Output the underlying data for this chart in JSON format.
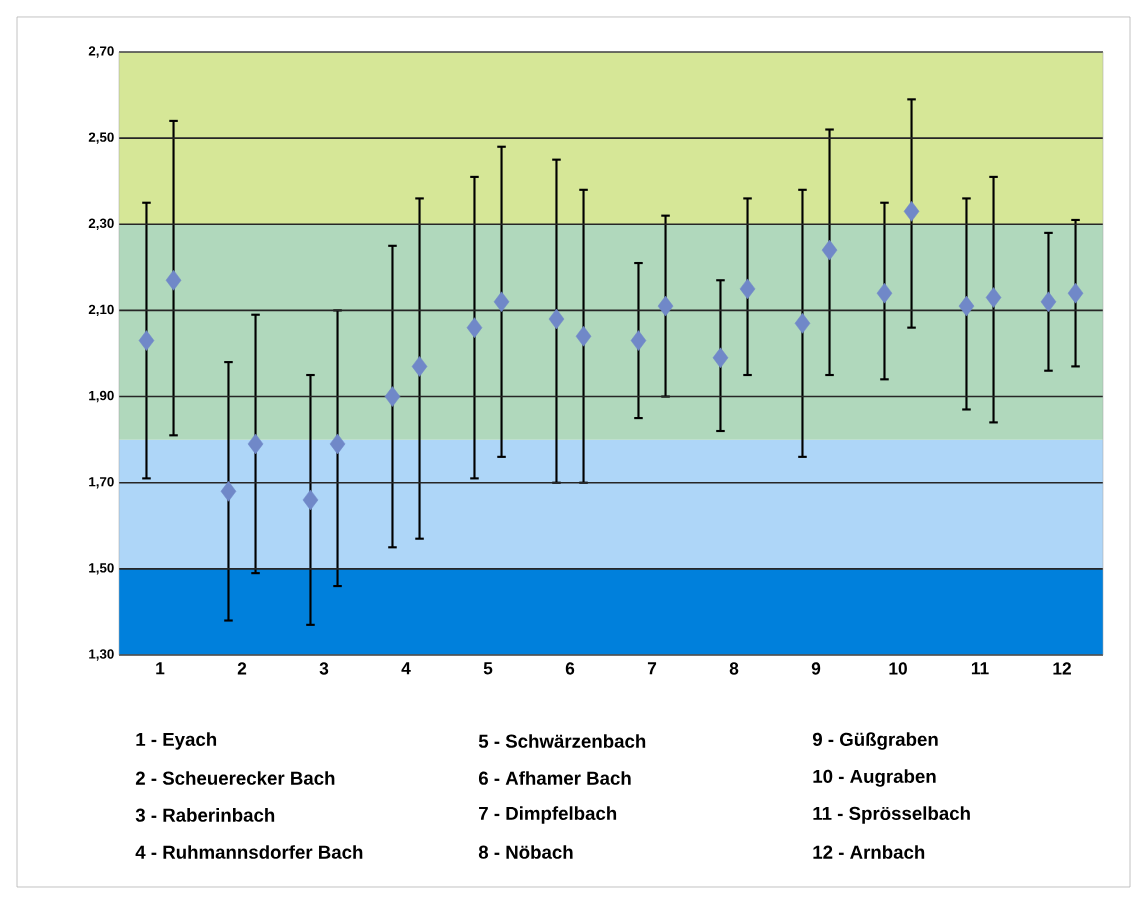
{
  "chart_data": {
    "type": "scatter",
    "categories": [
      "1",
      "2",
      "3",
      "4",
      "5",
      "6",
      "7",
      "8",
      "9",
      "10",
      "11",
      "12"
    ],
    "ylim": [
      1.3,
      2.7
    ],
    "yticks": [
      {
        "value": 1.3,
        "label": "1,30"
      },
      {
        "value": 1.5,
        "label": "1,50"
      },
      {
        "value": 1.7,
        "label": "1,70"
      },
      {
        "value": 1.9,
        "label": "1,90"
      },
      {
        "value": 2.1,
        "label": "2,10"
      },
      {
        "value": 2.3,
        "label": "2,30"
      },
      {
        "value": 2.5,
        "label": "2,50"
      },
      {
        "value": 2.7,
        "label": "2,70"
      }
    ],
    "grid": "y",
    "marker": "diamond",
    "series": [
      {
        "color": "#7088c8",
        "values": [
          2.03,
          1.68,
          1.66,
          1.9,
          2.06,
          2.08,
          2.03,
          1.99,
          2.07,
          2.14,
          2.11,
          2.12
        ],
        "errors": [
          [
            1.71,
            2.35
          ],
          [
            1.38,
            1.98
          ],
          [
            1.37,
            1.95
          ],
          [
            1.55,
            2.25
          ],
          [
            1.71,
            2.41
          ],
          [
            1.7,
            2.45
          ],
          [
            1.85,
            2.21
          ],
          [
            1.82,
            2.17
          ],
          [
            1.76,
            2.38
          ],
          [
            1.94,
            2.35
          ],
          [
            1.87,
            2.36
          ],
          [
            1.96,
            2.28
          ]
        ]
      },
      {
        "color": "#7088c8",
        "values": [
          2.17,
          1.79,
          1.79,
          1.97,
          2.12,
          2.04,
          2.11,
          2.15,
          2.24,
          2.33,
          2.13,
          2.14
        ],
        "errors": [
          [
            1.81,
            2.54
          ],
          [
            1.49,
            2.09
          ],
          [
            1.46,
            2.1
          ],
          [
            1.57,
            2.36
          ],
          [
            1.76,
            2.48
          ],
          [
            1.7,
            2.38
          ],
          [
            1.9,
            2.32
          ],
          [
            1.95,
            2.36
          ],
          [
            1.95,
            2.52
          ],
          [
            2.06,
            2.59
          ],
          [
            1.84,
            2.41
          ],
          [
            1.97,
            2.31
          ]
        ]
      }
    ],
    "bands": [
      {
        "axis": "y",
        "from": 1.3,
        "to": 1.5,
        "color": "#0080dc"
      },
      {
        "axis": "y",
        "from": 1.5,
        "to": 1.8,
        "color": "#aed6f8"
      },
      {
        "axis": "y",
        "from": 1.8,
        "to": 2.3,
        "color": "#b0d8bc"
      },
      {
        "axis": "y",
        "from": 2.3,
        "to": 2.7,
        "color": "#d6e797"
      }
    ],
    "annotations": [
      "1 - Eyach",
      "2 - Scheuerecker Bach",
      "3 - Raberinbach",
      "4 - Ruhmannsdorfer Bach",
      "5 - Schwärzenbach",
      "6 - Afhamer Bach",
      "7 - Dimpfelbach",
      "8 - Nöbach",
      "9 - Güßgraben",
      "10 - Augraben",
      "11 - Sprösselbach",
      "12 - Arnbach"
    ]
  }
}
